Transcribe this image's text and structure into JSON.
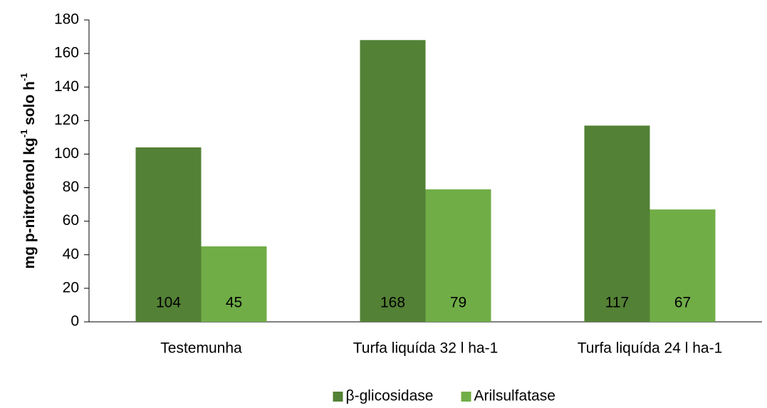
{
  "chart_data": {
    "type": "bar",
    "y_label_parts": [
      {
        "text": "mg p-nitrofenol kg"
      },
      {
        "text": "-1",
        "sup": true
      },
      {
        "text": " solo h"
      },
      {
        "text": "-1",
        "sup": true
      }
    ],
    "categories": [
      "Testemunha",
      "Turfa liquída 32 l ha-1",
      "Turfa liquída 24 l ha-1"
    ],
    "series": [
      {
        "name": "β-glicosidase",
        "color": "#538135",
        "values": [
          104,
          168,
          117
        ]
      },
      {
        "name": "Arilsulfatase",
        "color": "#70ad47",
        "values": [
          45,
          79,
          67
        ]
      }
    ],
    "ylim": [
      0,
      180
    ],
    "yticks": [
      0,
      20,
      40,
      60,
      80,
      100,
      120,
      140,
      160,
      180
    ],
    "grid": false,
    "legend": "bottom",
    "data_labels": true
  }
}
